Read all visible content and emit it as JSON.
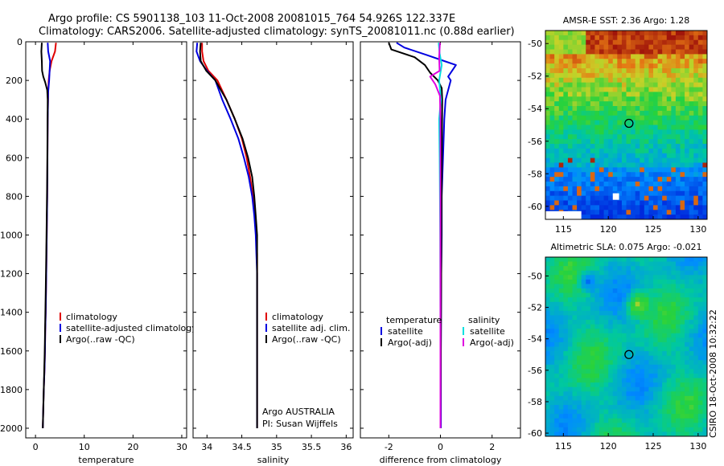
{
  "header": {
    "line1": "Argo profile: CS 5901138_103 11-Oct-2008 20081015_764 54.926S 122.337E",
    "line2": "Climatology: CARS2006. Satellite-adjusted climatology: synTS_20081011.nc (0.88d earlier)"
  },
  "attribution": {
    "line1": "Argo AUSTRALIA",
    "line2": "PI: Susan Wijffels"
  },
  "stamp": "CSIRO 18-Oct-2008 10:32:22",
  "colors": {
    "climatology": "#e00000",
    "satellite": "#0000e0",
    "argo": "#000000",
    "cyan": "#00e0e0",
    "magenta": "#e000e0"
  },
  "chart_data": [
    {
      "type": "line",
      "name": "temperature-profile",
      "xlabel": "temperature",
      "xlim": [
        -2,
        31
      ],
      "xticks": [
        0,
        10,
        20,
        30
      ],
      "ylim": [
        2050,
        0
      ],
      "yticks": [
        0,
        200,
        400,
        600,
        800,
        1000,
        1200,
        1400,
        1600,
        1800,
        2000
      ],
      "legend": [
        "climatology",
        "satellite-adjusted climatology",
        "Argo(..raw -QC)"
      ],
      "legend_placement": "lower-right",
      "series": [
        {
          "name": "climatology",
          "color": "#e00000",
          "x": [
            4.2,
            4.0,
            3.3,
            2.9,
            2.7,
            2.6,
            2.5,
            2.45,
            2.4,
            2.3,
            2.2,
            2.1,
            2.0,
            1.95,
            1.85,
            1.7,
            1.6,
            1.5
          ],
          "y": [
            5,
            50,
            100,
            150,
            200,
            260,
            400,
            600,
            800,
            1000,
            1200,
            1400,
            1500,
            1600,
            1700,
            1800,
            1900,
            2000
          ]
        },
        {
          "name": "satellite",
          "color": "#0000e0",
          "x": [
            2.5,
            2.6,
            3.0,
            2.9,
            2.8,
            2.6,
            2.5,
            2.45,
            2.4,
            2.3,
            2.2,
            2.1,
            2.0,
            1.95,
            1.85,
            1.7,
            1.6,
            1.5
          ],
          "y": [
            5,
            50,
            100,
            150,
            200,
            260,
            400,
            600,
            800,
            1000,
            1200,
            1400,
            1500,
            1600,
            1700,
            1800,
            1900,
            2000
          ]
        },
        {
          "name": "argo",
          "color": "#000000",
          "x": [
            1.3,
            1.2,
            1.3,
            1.35,
            1.6,
            2.0,
            2.4,
            2.5,
            2.45,
            2.4,
            2.3,
            2.2,
            2.1,
            2.0,
            1.9,
            1.8,
            1.7,
            1.6,
            1.5
          ],
          "y": [
            5,
            50,
            100,
            150,
            180,
            210,
            250,
            300,
            500,
            700,
            900,
            1100,
            1300,
            1450,
            1600,
            1700,
            1800,
            1900,
            2000
          ]
        }
      ]
    },
    {
      "type": "line",
      "name": "salinity-profile",
      "xlabel": "salinity",
      "xlim": [
        33.8,
        36.1
      ],
      "xticks": [
        34,
        34.5,
        35,
        35.5,
        36
      ],
      "ylim": [
        2050,
        0
      ],
      "legend": [
        "climatology",
        "satellite adj. clim.",
        "Argo(..raw -QC)"
      ],
      "legend_placement": "lower-right",
      "series": [
        {
          "name": "climatology",
          "color": "#e00000",
          "x": [
            33.93,
            33.93,
            33.95,
            34.02,
            34.15,
            34.28,
            34.4,
            34.5,
            34.57,
            34.62,
            34.66,
            34.69,
            34.71,
            34.72,
            34.72,
            34.72,
            34.72
          ],
          "y": [
            5,
            50,
            100,
            150,
            200,
            300,
            400,
            500,
            600,
            700,
            800,
            900,
            1000,
            1100,
            1200,
            1500,
            2000
          ]
        },
        {
          "name": "satellite",
          "color": "#0000e0",
          "x": [
            33.86,
            33.85,
            33.9,
            34.0,
            34.12,
            34.22,
            34.34,
            34.45,
            34.53,
            34.6,
            34.65,
            34.68,
            34.7,
            34.71,
            34.72,
            34.72,
            34.72
          ],
          "y": [
            5,
            50,
            100,
            150,
            200,
            300,
            400,
            500,
            600,
            700,
            800,
            900,
            1000,
            1100,
            1200,
            1500,
            2000
          ]
        },
        {
          "name": "argo",
          "color": "#000000",
          "x": [
            33.91,
            33.9,
            33.91,
            33.99,
            34.12,
            34.28,
            34.4,
            34.51,
            34.59,
            34.65,
            34.68,
            34.7,
            34.72,
            34.72,
            34.72,
            34.72,
            34.72
          ],
          "y": [
            5,
            50,
            100,
            150,
            200,
            300,
            400,
            500,
            600,
            700,
            800,
            900,
            1000,
            1100,
            1200,
            1500,
            2000
          ]
        }
      ]
    },
    {
      "type": "line",
      "name": "difference-profile",
      "xlabel": "difference from climatology",
      "xlim": [
        -3.1,
        3.1
      ],
      "xticks": [
        -2,
        0,
        2
      ],
      "ylim": [
        2050,
        0
      ],
      "legend_headings": [
        "temperature",
        "salinity"
      ],
      "legend": [
        "satellite",
        "Argo(-adj)",
        "satellite",
        "Argo(-adj)"
      ],
      "legend_placement": "lower-center",
      "series": [
        {
          "name": "temperature-satellite",
          "color": "#0000e0",
          "x": [
            -1.7,
            -1.4,
            -0.5,
            0.15,
            0.6,
            0.3,
            0.4,
            0.3,
            0.2,
            0.15,
            0.1,
            0.05,
            0.05,
            0.03,
            0.02,
            0.02
          ],
          "y": [
            5,
            30,
            70,
            100,
            120,
            180,
            200,
            250,
            300,
            400,
            600,
            800,
            1000,
            1200,
            1600,
            2000
          ]
        },
        {
          "name": "temperature-argo",
          "color": "#000000",
          "x": [
            -2.0,
            -1.9,
            -1.0,
            -0.6,
            -0.4,
            -0.1,
            0.05,
            0.07,
            0.06,
            0.05,
            0.04,
            0.03,
            0.02,
            0.01,
            0.0
          ],
          "y": [
            5,
            40,
            80,
            120,
            160,
            200,
            240,
            300,
            500,
            700,
            900,
            1200,
            1500,
            1800,
            2000
          ]
        },
        {
          "name": "salinity-satellite",
          "color": "#00e0e0",
          "x": [
            -0.07,
            -0.03,
            0.05,
            -0.05,
            0.02,
            -0.05,
            -0.04,
            -0.03,
            -0.02,
            -0.01,
            0.0,
            0.0
          ],
          "y": [
            5,
            60,
            120,
            200,
            300,
            400,
            500,
            600,
            800,
            1000,
            1500,
            2000
          ]
        },
        {
          "name": "salinity-argo",
          "color": "#e000e0",
          "x": [
            -0.02,
            -0.05,
            -0.03,
            -0.4,
            -0.2,
            -0.02,
            0.0,
            0.0,
            0.0
          ],
          "y": [
            5,
            80,
            150,
            180,
            220,
            280,
            400,
            1000,
            2000
          ]
        }
      ]
    },
    {
      "type": "heatmap",
      "name": "amsr-e-sst-map",
      "title": "AMSR-E SST: 2.36 Argo: 1.28",
      "xlim": [
        113,
        131
      ],
      "ylim": [
        -60.8,
        -49.2
      ],
      "xticks": [
        115,
        120,
        125,
        130
      ],
      "yticks": [
        -50,
        -52,
        -54,
        -56,
        -58,
        -60
      ],
      "marker": {
        "lon": 122.3,
        "lat": -54.9
      }
    },
    {
      "type": "heatmap",
      "name": "altimetric-sla-map",
      "title": "Altimetric SLA: 0.075 Argo: -0.021",
      "xlim": [
        113,
        131
      ],
      "ylim": [
        -60.2,
        -48.8
      ],
      "xticks": [
        115,
        120,
        125,
        130
      ],
      "yticks": [
        -50,
        -52,
        -54,
        -56,
        -58,
        -60
      ],
      "marker": {
        "lon": 122.3,
        "lat": -55
      }
    }
  ]
}
